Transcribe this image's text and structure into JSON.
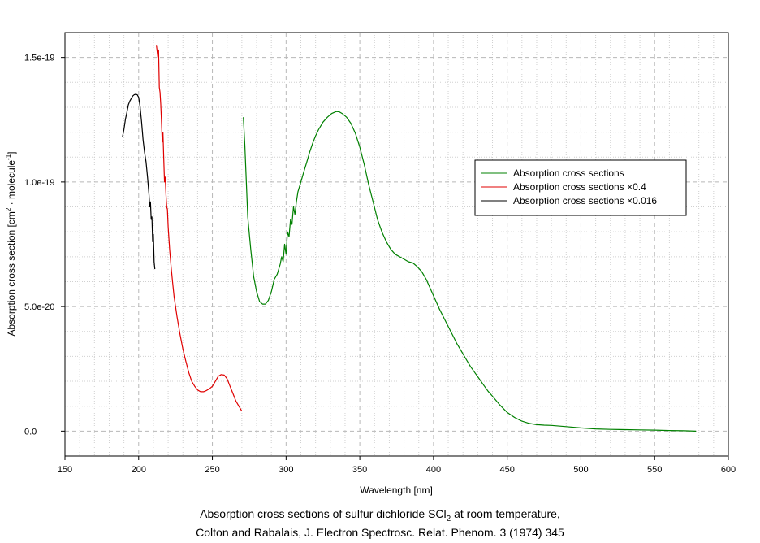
{
  "chart_data": {
    "type": "line",
    "xlabel": "Wavelength [nm]",
    "ylabel_parts": [
      "Absorption cross section [cm",
      "2",
      " · molecule",
      "-1",
      "]"
    ],
    "xlim": [
      150,
      600
    ],
    "ylim": [
      -1e-20,
      1.6e-19
    ],
    "x_ticks": [
      150,
      200,
      250,
      300,
      350,
      400,
      450,
      500,
      550,
      600
    ],
    "x_tick_labels": [
      "150",
      "200",
      "250",
      "300",
      "350",
      "400",
      "450",
      "500",
      "550",
      "600"
    ],
    "y_ticks": [
      0,
      5e-20,
      1e-19,
      1.5e-19
    ],
    "y_tick_labels": [
      "0.0",
      "5.0e-20",
      "1.0e-19",
      "1.5e-19"
    ],
    "grid": true,
    "legend_position": "center-right",
    "series": [
      {
        "name": "Absorption cross sections",
        "color": "#008000",
        "x": [
          271,
          272,
          274,
          276,
          278,
          280,
          282,
          284,
          286,
          288,
          290,
          292,
          294,
          296,
          297,
          298,
          299,
          300,
          301,
          302,
          303,
          304,
          305,
          306,
          307,
          308,
          310,
          312,
          314,
          316,
          318,
          320,
          322,
          325,
          328,
          331,
          334,
          336,
          338,
          341,
          344,
          347,
          350,
          353,
          356,
          359,
          362,
          365,
          368,
          371,
          374,
          377,
          380,
          383,
          386,
          389,
          392,
          395,
          398,
          401,
          404,
          407,
          410,
          413,
          416,
          419,
          422,
          425,
          428,
          431,
          434,
          437,
          440,
          445,
          450,
          455,
          460,
          465,
          470,
          475,
          480,
          490,
          500,
          510,
          520,
          530,
          540,
          550,
          560,
          570,
          578
        ],
        "y": [
          1.26e-19,
          1.15e-19,
          8.6e-20,
          7.3e-20,
          6.2e-20,
          5.6e-20,
          5.2e-20,
          5.1e-20,
          5.1e-20,
          5.25e-20,
          5.6e-20,
          6.1e-20,
          6.3e-20,
          6.7e-20,
          7e-20,
          6.8e-20,
          7.5e-20,
          7.1e-20,
          8e-20,
          7.8e-20,
          8.5e-20,
          8.3e-20,
          9e-20,
          8.7e-20,
          9.2e-20,
          9.6e-20,
          1e-19,
          1.04e-19,
          1.08e-19,
          1.12e-19,
          1.155e-19,
          1.185e-19,
          1.21e-19,
          1.24e-19,
          1.26e-19,
          1.275e-19,
          1.283e-19,
          1.282e-19,
          1.275e-19,
          1.26e-19,
          1.235e-19,
          1.195e-19,
          1.14e-19,
          1.07e-19,
          9.9e-20,
          9.2e-20,
          8.5e-20,
          8e-20,
          7.6e-20,
          7.3e-20,
          7.1e-20,
          7e-20,
          6.9e-20,
          6.8e-20,
          6.75e-20,
          6.6e-20,
          6.4e-20,
          6.1e-20,
          5.7e-20,
          5.3e-20,
          4.9e-20,
          4.55e-20,
          4.2e-20,
          3.85e-20,
          3.5e-20,
          3.2e-20,
          2.9e-20,
          2.6e-20,
          2.35e-20,
          2.1e-20,
          1.85e-20,
          1.6e-20,
          1.4e-20,
          1.05e-20,
          7.5e-21,
          5.5e-21,
          4e-21,
          3.1e-21,
          2.6e-21,
          2.4e-21,
          2.3e-21,
          1.8e-21,
          1.3e-21,
          9e-22,
          7e-22,
          6e-22,
          5e-22,
          4e-22,
          2.5e-22,
          1.5e-22,
          0
        ]
      },
      {
        "name": "Absorption cross sections ×0.4",
        "color": "#e00000",
        "x": [
          212,
          213,
          213.5,
          214,
          214.5,
          215,
          215.5,
          216,
          216.5,
          217,
          217.5,
          218,
          218.5,
          219,
          219.5,
          220,
          221,
          222,
          223,
          224,
          226,
          228,
          230,
          232,
          234,
          236,
          238,
          240,
          242,
          244,
          246,
          248,
          250,
          252,
          254,
          256,
          258,
          260,
          262,
          264,
          266,
          268,
          270
        ],
        "y": [
          1.55e-19,
          1.5e-19,
          1.53e-19,
          1.38e-19,
          1.36e-19,
          1.31e-19,
          1.24e-19,
          1.16e-19,
          1.2e-19,
          1.1e-19,
          1e-19,
          1.02e-19,
          9.5e-20,
          9e-20,
          8.9e-20,
          8.2e-20,
          7.3e-20,
          6.6e-20,
          6e-20,
          5.4e-20,
          4.6e-20,
          3.9e-20,
          3.3e-20,
          2.8e-20,
          2.35e-20,
          2e-20,
          1.8e-20,
          1.65e-20,
          1.58e-20,
          1.58e-20,
          1.63e-20,
          1.7e-20,
          1.8e-20,
          2e-20,
          2.2e-20,
          2.27e-20,
          2.25e-20,
          2.1e-20,
          1.8e-20,
          1.5e-20,
          1.2e-20,
          1e-20,
          8e-21
        ]
      },
      {
        "name": "Absorption cross sections ×0.016",
        "color": "#000000",
        "x": [
          189,
          190,
          191,
          192,
          193,
          194,
          195,
          196,
          197,
          198,
          199,
          200,
          201,
          202,
          203,
          204,
          205,
          206,
          207,
          207.5,
          208,
          208.5,
          209,
          209.5,
          210,
          210.5,
          211
        ],
        "y": [
          1.18e-19,
          1.21e-19,
          1.25e-19,
          1.28e-19,
          1.31e-19,
          1.325e-19,
          1.335e-19,
          1.345e-19,
          1.35e-19,
          1.352e-19,
          1.35e-19,
          1.34e-19,
          1.3e-19,
          1.24e-19,
          1.17e-19,
          1.12e-19,
          1.08e-19,
          1.02e-19,
          9.5e-20,
          9e-20,
          9.2e-20,
          8.5e-20,
          8.6e-20,
          7.6e-20,
          7.9e-20,
          6.8e-20,
          6.5e-20
        ]
      }
    ]
  },
  "caption": {
    "line1_before": "Absorption cross sections of sulfur dichloride SCl",
    "line1_sub": "2",
    "line1_after": " at room temperature,",
    "line2": "Colton and Rabalais,  J. Electron Spectrosc. Relat. Phenom. 3 (1974) 345"
  }
}
